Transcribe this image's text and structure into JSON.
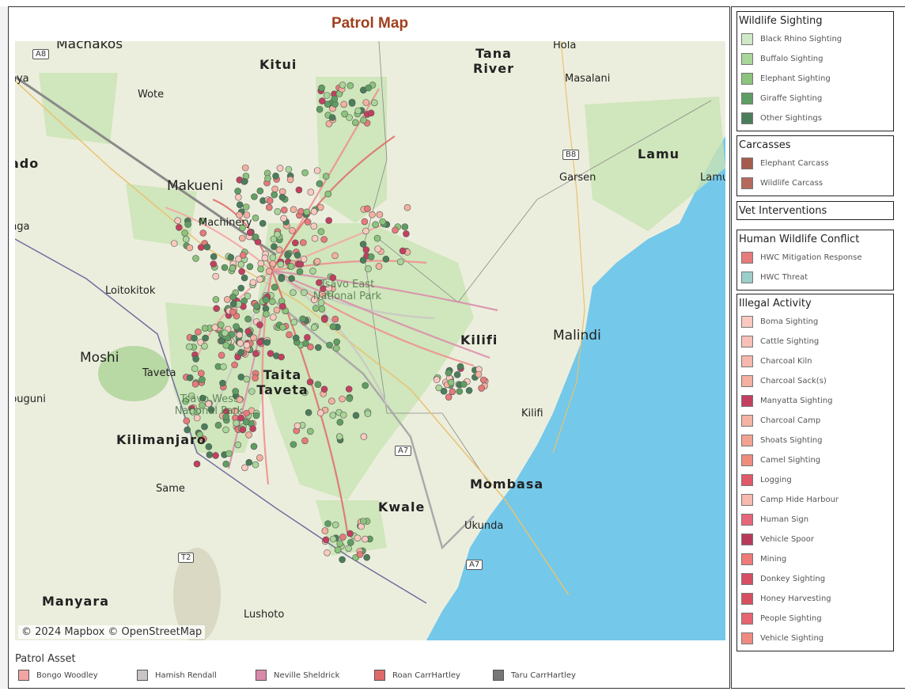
{
  "title": "Patrol Map",
  "map": {
    "attribution": "© 2024 Mapbox © OpenStreetMap",
    "places": [
      {
        "name": "Machakos",
        "size": "mid"
      },
      {
        "name": "Kitui",
        "size": "big"
      },
      {
        "name": "Tana River",
        "size": "big"
      },
      {
        "name": "Hola",
        "size": "small"
      },
      {
        "name": "Masalani",
        "size": "small"
      },
      {
        "name": "Wote",
        "size": "small"
      },
      {
        "name": "Makueni",
        "size": "mid"
      },
      {
        "name": "Garsen",
        "size": "small"
      },
      {
        "name": "Lamu",
        "size": "big"
      },
      {
        "name": "Lamu",
        "size": "small"
      },
      {
        "name": "Loitokitok",
        "size": "small"
      },
      {
        "name": "Tsavo East National Park",
        "size": "small"
      },
      {
        "name": "Kilifi",
        "size": "big"
      },
      {
        "name": "Malindi",
        "size": "mid"
      },
      {
        "name": "Moshi",
        "size": "mid"
      },
      {
        "name": "Taveta",
        "size": "small"
      },
      {
        "name": "Taita Taveta",
        "size": "big"
      },
      {
        "name": "Kilifi",
        "size": "small"
      },
      {
        "name": "Kilimanjaro",
        "size": "big"
      },
      {
        "name": "Same",
        "size": "small"
      },
      {
        "name": "Mombasa",
        "size": "big"
      },
      {
        "name": "Kwale",
        "size": "big"
      },
      {
        "name": "Ukunda",
        "size": "small"
      },
      {
        "name": "Manyara",
        "size": "big"
      },
      {
        "name": "Lushoto",
        "size": "small"
      },
      {
        "name": "ado",
        "size": "big"
      },
      {
        "name": "nga",
        "size": "small"
      },
      {
        "name": "buguni",
        "size": "small"
      },
      {
        "name": "aya",
        "size": "small"
      },
      {
        "name": "Tsavo West National Park",
        "size": "small"
      },
      {
        "name": "Machinery",
        "size": "small"
      }
    ],
    "roads": [
      "A8",
      "B8",
      "A7",
      "T2",
      "A7"
    ]
  },
  "patrol_asset": {
    "title": "Patrol Asset",
    "items": [
      {
        "label": "Bongo Woodley",
        "color": "#f4a3a3"
      },
      {
        "label": "Hamish Rendall",
        "color": "#c9c4c4"
      },
      {
        "label": "Neville Sheldrick",
        "color": "#d98aaa"
      },
      {
        "label": "Roan CarrHartley",
        "color": "#e06a6a"
      },
      {
        "label": "Taru CarrHartley",
        "color": "#777777"
      }
    ]
  },
  "legends": [
    {
      "title": "Wildlife Sighting",
      "items": [
        {
          "label": "Black Rhino Sighting",
          "color": "#cfe8c6"
        },
        {
          "label": "Buffalo Sighting",
          "color": "#a9d699"
        },
        {
          "label": "Elephant Sighting",
          "color": "#8cc47c"
        },
        {
          "label": "Giraffe Sighting",
          "color": "#5f9e62"
        },
        {
          "label": "Other Sightings",
          "color": "#4a7e5a"
        }
      ]
    },
    {
      "title": "Carcasses",
      "items": [
        {
          "label": "Elephant Carcass",
          "color": "#a55c4c"
        },
        {
          "label": "Wildlife Carcass",
          "color": "#b66a5c"
        }
      ]
    },
    {
      "title": "Vet Interventions",
      "items": []
    },
    {
      "title": "Human Wildlife Conflict",
      "items": [
        {
          "label": "HWC Mitigation Response",
          "color": "#e77a7a"
        },
        {
          "label": "HWC Threat",
          "color": "#9ccfc9"
        }
      ]
    },
    {
      "title": "Illegal Activity",
      "items": [
        {
          "label": "Boma Sighting",
          "color": "#f9c9c0"
        },
        {
          "label": "Cattle Sighting",
          "color": "#f8c0b6"
        },
        {
          "label": "Charcoal Kiln",
          "color": "#f6b8ac"
        },
        {
          "label": "Charcoal Sack(s)",
          "color": "#f4b0a0"
        },
        {
          "label": "Manyatta Sighting",
          "color": "#c2405f"
        },
        {
          "label": "Charcoal Camp",
          "color": "#f4b3a3"
        },
        {
          "label": "Shoats Sighting",
          "color": "#f2a292"
        },
        {
          "label": "Camel Sighting",
          "color": "#ef8c7e"
        },
        {
          "label": "Logging",
          "color": "#e05a6a"
        },
        {
          "label": "Camp Hide Harbour",
          "color": "#f7b8ae"
        },
        {
          "label": "Human Sign",
          "color": "#e7667a"
        },
        {
          "label": "Vehicle Spoor",
          "color": "#b83a5a"
        },
        {
          "label": "Mining",
          "color": "#ef7a78"
        },
        {
          "label": "Donkey Sighting",
          "color": "#d84e62"
        },
        {
          "label": "Honey Harvesting",
          "color": "#d85060"
        },
        {
          "label": "People Sighting",
          "color": "#e6656e"
        },
        {
          "label": "Vehicle Sighting",
          "color": "#f08a80"
        }
      ]
    }
  ]
}
